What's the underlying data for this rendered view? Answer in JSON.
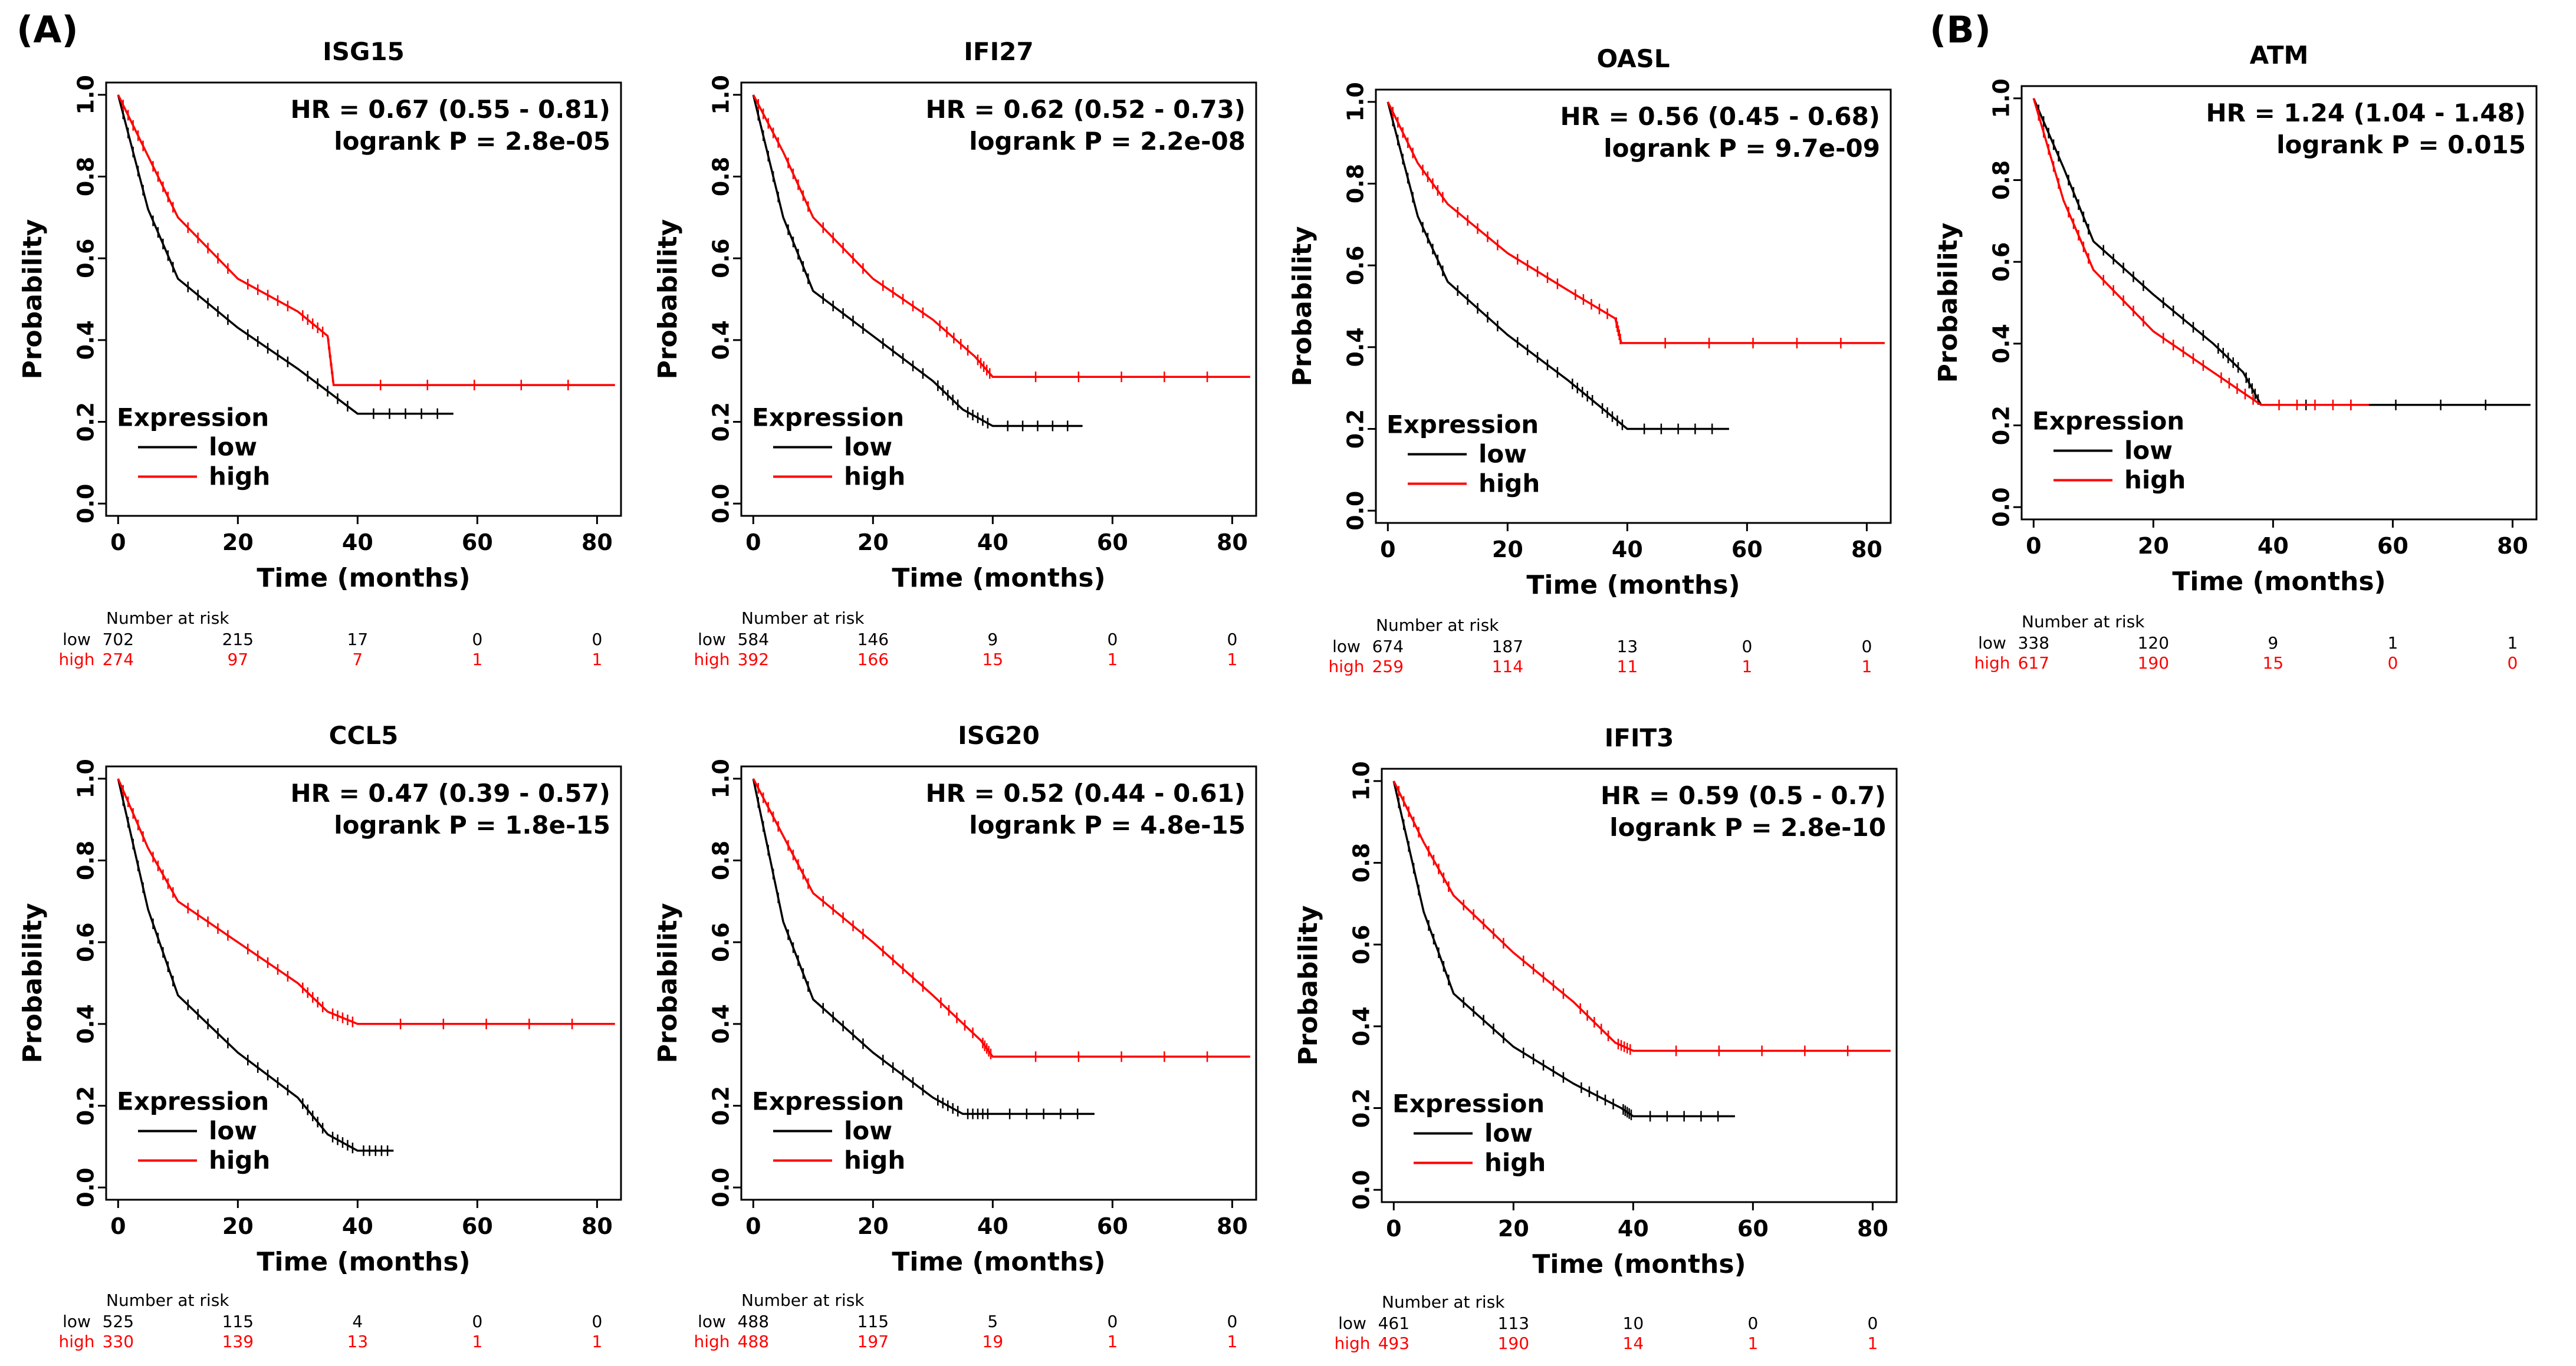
{
  "panel_labels": {
    "a": "(A)",
    "b": "(B)"
  },
  "common": {
    "xlabel": "Time (months)",
    "ylabel": "Probability",
    "legend_title": "Expression",
    "legend_low": "low",
    "legend_high": "high",
    "risk_header": "Number at risk",
    "risk_low_label": "low",
    "risk_high_label": "high",
    "x_ticks": [
      "0",
      "20",
      "40",
      "60",
      "80"
    ],
    "y_ticks": [
      "0.0",
      "0.2",
      "0.4",
      "0.6",
      "0.8",
      "1.0"
    ],
    "colors": {
      "low": "#000000",
      "high": "#ff0000"
    }
  },
  "chart_data": [
    {
      "type": "line",
      "title": "ISG15",
      "xlim": [
        -2,
        84
      ],
      "ylim": [
        -0.03,
        1.03
      ],
      "hr_text": "HR = 0.67 (0.55 - 0.81)",
      "p_text": "logrank P = 2.8e-05",
      "series": [
        {
          "name": "low",
          "x": [
            0,
            5,
            10,
            20,
            30,
            40,
            56
          ],
          "y": [
            1.0,
            0.72,
            0.55,
            0.43,
            0.33,
            0.22,
            0.22
          ]
        },
        {
          "name": "high",
          "x": [
            0,
            5,
            10,
            20,
            30,
            35,
            36,
            83
          ],
          "y": [
            1.0,
            0.85,
            0.7,
            0.55,
            0.47,
            0.41,
            0.29,
            0.29
          ]
        }
      ],
      "risk_low": [
        "702",
        "215",
        "17",
        "0",
        "0"
      ],
      "risk_high": [
        "274",
        "97",
        "7",
        "1",
        "1"
      ]
    },
    {
      "type": "line",
      "title": "IFI27",
      "xlim": [
        -2,
        84
      ],
      "ylim": [
        -0.03,
        1.03
      ],
      "hr_text": "HR = 0.62 (0.52 - 0.73)",
      "p_text": "logrank P = 2.2e-08",
      "series": [
        {
          "name": "low",
          "x": [
            0,
            5,
            10,
            20,
            30,
            35,
            40,
            55
          ],
          "y": [
            1.0,
            0.7,
            0.52,
            0.41,
            0.3,
            0.23,
            0.19,
            0.19
          ]
        },
        {
          "name": "high",
          "x": [
            0,
            5,
            10,
            20,
            30,
            37,
            40,
            83
          ],
          "y": [
            1.0,
            0.86,
            0.7,
            0.55,
            0.45,
            0.36,
            0.31,
            0.31
          ]
        }
      ],
      "risk_low": [
        "584",
        "146",
        "9",
        "0",
        "0"
      ],
      "risk_high": [
        "392",
        "166",
        "15",
        "1",
        "1"
      ]
    },
    {
      "type": "line",
      "title": "OASL",
      "xlim": [
        -2,
        84
      ],
      "ylim": [
        -0.03,
        1.03
      ],
      "hr_text": "HR = 0.56 (0.45 - 0.68)",
      "p_text": "logrank P = 9.7e-09",
      "series": [
        {
          "name": "low",
          "x": [
            0,
            5,
            10,
            20,
            30,
            35,
            40,
            57
          ],
          "y": [
            1.0,
            0.72,
            0.56,
            0.43,
            0.32,
            0.26,
            0.2,
            0.2
          ]
        },
        {
          "name": "high",
          "x": [
            0,
            5,
            10,
            20,
            30,
            38,
            39,
            83
          ],
          "y": [
            1.0,
            0.85,
            0.75,
            0.63,
            0.54,
            0.47,
            0.41,
            0.41
          ]
        }
      ],
      "risk_low": [
        "674",
        "187",
        "13",
        "0",
        "0"
      ],
      "risk_high": [
        "259",
        "114",
        "11",
        "1",
        "1"
      ]
    },
    {
      "type": "line",
      "title": "ATM",
      "xlim": [
        -2,
        84
      ],
      "ylim": [
        -0.03,
        1.03
      ],
      "hr_text": "HR = 1.24 (1.04 - 1.48)",
      "p_text": "logrank P = 0.015",
      "series": [
        {
          "name": "low",
          "x": [
            0,
            5,
            10,
            20,
            30,
            35,
            38,
            83
          ],
          "y": [
            1.0,
            0.83,
            0.65,
            0.52,
            0.4,
            0.33,
            0.25,
            0.25
          ]
        },
        {
          "name": "high",
          "x": [
            0,
            5,
            10,
            20,
            30,
            38,
            56
          ],
          "y": [
            1.0,
            0.75,
            0.58,
            0.43,
            0.33,
            0.25,
            0.25
          ]
        }
      ],
      "risk_low": [
        "338",
        "120",
        "9",
        "1",
        "1"
      ],
      "risk_high": [
        "617",
        "190",
        "15",
        "0",
        "0"
      ]
    },
    {
      "type": "line",
      "title": "CCL5",
      "xlim": [
        -2,
        84
      ],
      "ylim": [
        -0.03,
        1.03
      ],
      "hr_text": "HR = 0.47 (0.39 - 0.57)",
      "p_text": "logrank P = 1.8e-15",
      "series": [
        {
          "name": "low",
          "x": [
            0,
            5,
            10,
            20,
            30,
            35,
            40,
            46
          ],
          "y": [
            1.0,
            0.68,
            0.47,
            0.33,
            0.22,
            0.13,
            0.09,
            0.09
          ]
        },
        {
          "name": "high",
          "x": [
            0,
            5,
            10,
            20,
            30,
            35,
            40,
            83
          ],
          "y": [
            1.0,
            0.83,
            0.7,
            0.6,
            0.5,
            0.43,
            0.4,
            0.4
          ]
        }
      ],
      "risk_low": [
        "525",
        "115",
        "4",
        "0",
        "0"
      ],
      "risk_high": [
        "330",
        "139",
        "13",
        "1",
        "1"
      ]
    },
    {
      "type": "line",
      "title": "ISG20",
      "xlim": [
        -2,
        84
      ],
      "ylim": [
        -0.03,
        1.03
      ],
      "hr_text": "HR = 0.52 (0.44 - 0.61)",
      "p_text": "logrank P = 4.8e-15",
      "series": [
        {
          "name": "low",
          "x": [
            0,
            5,
            10,
            20,
            30,
            35,
            40,
            57
          ],
          "y": [
            1.0,
            0.65,
            0.46,
            0.33,
            0.22,
            0.18,
            0.18,
            0.18
          ]
        },
        {
          "name": "high",
          "x": [
            0,
            5,
            10,
            20,
            30,
            38,
            40,
            83
          ],
          "y": [
            1.0,
            0.86,
            0.72,
            0.6,
            0.47,
            0.36,
            0.32,
            0.32
          ]
        }
      ],
      "risk_low": [
        "488",
        "115",
        "5",
        "0",
        "0"
      ],
      "risk_high": [
        "488",
        "197",
        "19",
        "1",
        "1"
      ]
    },
    {
      "type": "line",
      "title": "IFIT3",
      "xlim": [
        -2,
        84
      ],
      "ylim": [
        -0.03,
        1.03
      ],
      "hr_text": "HR = 0.59 (0.5 - 0.7)",
      "p_text": "logrank P = 2.8e-10",
      "series": [
        {
          "name": "low",
          "x": [
            0,
            5,
            10,
            20,
            30,
            38,
            40,
            57
          ],
          "y": [
            1.0,
            0.68,
            0.48,
            0.35,
            0.26,
            0.2,
            0.18,
            0.18
          ]
        },
        {
          "name": "high",
          "x": [
            0,
            5,
            10,
            20,
            30,
            37,
            40,
            83
          ],
          "y": [
            1.0,
            0.85,
            0.72,
            0.58,
            0.46,
            0.36,
            0.34,
            0.34
          ]
        }
      ],
      "risk_low": [
        "461",
        "113",
        "10",
        "0",
        "0"
      ],
      "risk_high": [
        "493",
        "190",
        "14",
        "1",
        "1"
      ]
    }
  ]
}
